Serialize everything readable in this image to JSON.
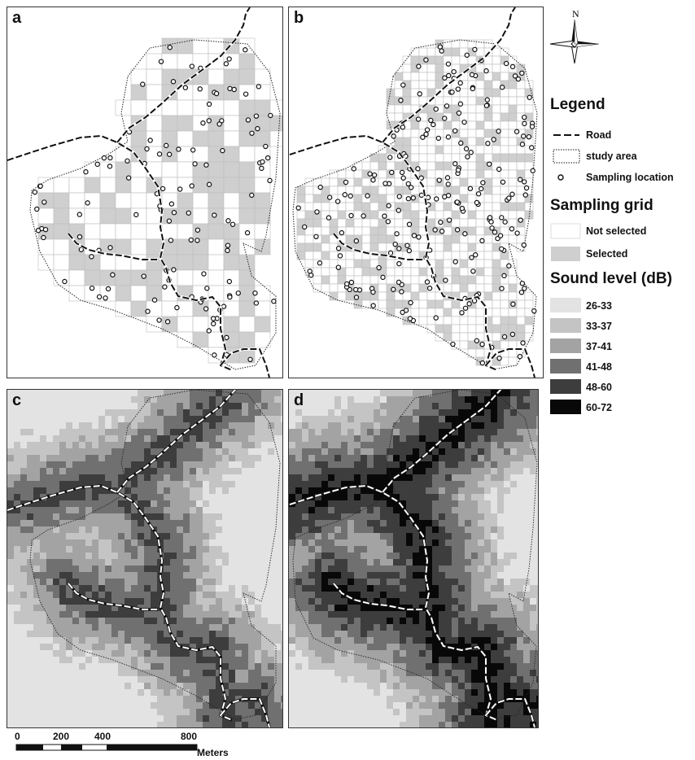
{
  "panels": {
    "a": {
      "label": "a"
    },
    "b": {
      "label": "b"
    },
    "c": {
      "label": "c"
    },
    "d": {
      "label": "d"
    }
  },
  "north_arrow": {
    "label": "N"
  },
  "legend": {
    "title": "Legend",
    "road": "Road",
    "study_area": "study area",
    "sampling_location": "Sampling location",
    "grid_title": "Sampling grid",
    "not_selected": "Not selected",
    "selected": "Selected",
    "sound_title": "Sound level (dB)",
    "classes": [
      {
        "label": "26-33",
        "color": "#e3e3e3"
      },
      {
        "label": "33-37",
        "color": "#c4c4c4"
      },
      {
        "label": "37-41",
        "color": "#a3a3a3"
      },
      {
        "label": "41-48",
        "color": "#707070"
      },
      {
        "label": "48-60",
        "color": "#3d3d3d"
      },
      {
        "label": "60-72",
        "color": "#080808"
      }
    ]
  },
  "scale_bar": {
    "ticks": [
      "0",
      "200",
      "400",
      "800"
    ],
    "unit": "Meters"
  }
}
